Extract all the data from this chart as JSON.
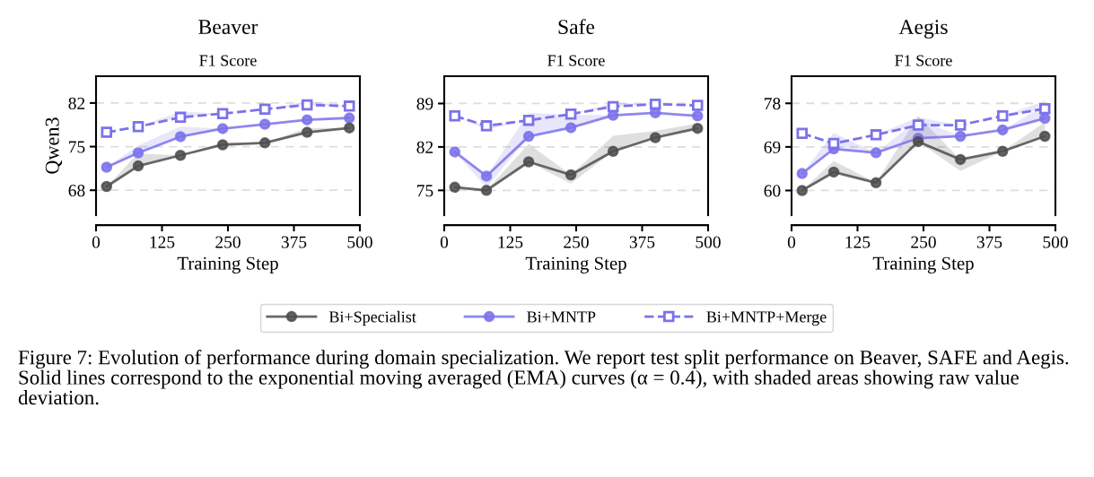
{
  "chart_data": [
    {
      "type": "line",
      "title": "Beaver",
      "subtitle": "F1 Score",
      "xlabel": "Training Step",
      "ylabel": "Qwen3",
      "x": [
        20,
        80,
        160,
        240,
        320,
        400,
        480
      ],
      "xlim": [
        0,
        500
      ],
      "xticks": [
        0,
        125,
        250,
        375,
        500
      ],
      "ylim": [
        64,
        86.3
      ],
      "yticks": [
        68,
        75,
        82
      ],
      "grid": "y",
      "legend": "bottom",
      "series": [
        {
          "name": "Bi+Specialist",
          "color": "#4d4d4d",
          "marker": "circle",
          "line_style": "solid",
          "values": [
            68.6,
            71.9,
            73.6,
            75.3,
            75.6,
            77.3,
            78.0
          ],
          "lower": [
            68.6,
            71.9,
            73.6,
            75.3,
            75.6,
            77.3,
            78.0
          ],
          "upper": [
            68.6,
            73.9,
            73.6,
            75.7,
            75.6,
            78.0,
            78.0
          ]
        },
        {
          "name": "Bi+MNTP",
          "color": "#7b72ea",
          "marker": "circle",
          "line_style": "solid",
          "values": [
            71.7,
            74.0,
            76.6,
            77.9,
            78.6,
            79.3,
            79.6
          ],
          "lower": [
            71.7,
            74.0,
            76.6,
            77.9,
            78.6,
            79.3,
            79.6
          ],
          "upper": [
            71.7,
            75.2,
            78.2,
            77.9,
            78.6,
            79.3,
            79.6
          ]
        },
        {
          "name": "Bi+MNTP+Merge",
          "color": "#7b72ea",
          "marker": "square",
          "line_style": "dashed",
          "values": [
            77.3,
            78.2,
            79.7,
            80.3,
            81.0,
            81.7,
            81.5
          ],
          "lower": [
            77.3,
            78.2,
            79.7,
            80.3,
            81.0,
            81.7,
            81.5
          ],
          "upper": [
            77.3,
            78.2,
            80.6,
            80.3,
            81.0,
            82.3,
            81.5
          ]
        }
      ],
      "annotations": [
        "Figure 7: Evolution of performance during domain specialization. We report test split performance on Beaver, SAFE and Aegis. Solid lines correspond to the exponential moving averaged (EMA) curves (α = 0.4), with shaded areas showing raw value deviation."
      ]
    },
    {
      "type": "line",
      "title": "Safe",
      "subtitle": "F1 Score",
      "xlabel": "Training Step",
      "x": [
        20,
        80,
        160,
        240,
        320,
        400,
        480
      ],
      "xlim": [
        0,
        500
      ],
      "xticks": [
        0,
        125,
        250,
        375,
        500
      ],
      "ylim": [
        71.0,
        93.4
      ],
      "yticks": [
        75,
        82,
        89
      ],
      "grid": "y",
      "series": [
        {
          "color": "#4d4d4d",
          "marker": "circle",
          "line_style": "solid",
          "values": [
            75.5,
            75.0,
            79.6,
            77.5,
            81.3,
            83.5,
            85.0
          ],
          "lower": [
            75.5,
            75.0,
            79.6,
            76.1,
            81.3,
            83.5,
            85.0
          ],
          "upper": [
            75.5,
            75.0,
            82.5,
            77.5,
            83.8,
            84.6,
            85.8
          ]
        },
        {
          "color": "#7b72ea",
          "marker": "circle",
          "line_style": "solid",
          "values": [
            81.2,
            77.3,
            83.7,
            85.1,
            87.1,
            87.5,
            87.0
          ],
          "lower": [
            81.2,
            75.4,
            83.7,
            85.1,
            87.1,
            87.5,
            87.0
          ],
          "upper": [
            81.2,
            77.3,
            87.5,
            87.2,
            87.1,
            87.5,
            87.0
          ]
        },
        {
          "color": "#7b72ea",
          "marker": "square",
          "line_style": "dashed",
          "values": [
            87.0,
            85.4,
            86.3,
            87.3,
            88.5,
            88.9,
            88.7
          ],
          "lower": [
            87.0,
            84.8,
            86.3,
            87.3,
            88.5,
            88.9,
            88.7
          ],
          "upper": [
            87.0,
            85.4,
            86.3,
            87.3,
            89.1,
            88.9,
            88.7
          ]
        }
      ]
    },
    {
      "type": "line",
      "title": "Aegis",
      "subtitle": "F1 Score",
      "xlabel": "Training Step",
      "x": [
        20,
        80,
        160,
        240,
        320,
        400,
        480
      ],
      "xlim": [
        0,
        500
      ],
      "xticks": [
        0,
        125,
        250,
        375,
        500
      ],
      "ylim": [
        54.9,
        83.6
      ],
      "yticks": [
        60,
        69,
        78
      ],
      "grid": "y",
      "series": [
        {
          "color": "#4d4d4d",
          "marker": "circle",
          "line_style": "solid",
          "values": [
            60.0,
            63.8,
            61.6,
            70.1,
            66.4,
            68.1,
            71.2
          ],
          "lower": [
            60.0,
            63.8,
            61.6,
            70.1,
            64.0,
            68.1,
            71.2
          ],
          "upper": [
            60.0,
            66.1,
            61.6,
            75.4,
            66.4,
            68.1,
            74.1
          ]
        },
        {
          "color": "#7b72ea",
          "marker": "circle",
          "line_style": "solid",
          "values": [
            63.5,
            68.6,
            67.8,
            70.8,
            71.2,
            72.5,
            74.9
          ],
          "lower": [
            63.5,
            68.6,
            67.8,
            70.8,
            71.2,
            72.5,
            74.9
          ],
          "upper": [
            63.5,
            71.9,
            67.8,
            74.6,
            71.2,
            72.5,
            77.6
          ]
        },
        {
          "color": "#7b72ea",
          "marker": "square",
          "line_style": "dashed",
          "values": [
            71.8,
            69.7,
            71.5,
            73.5,
            73.5,
            75.4,
            76.9
          ],
          "lower": [
            71.8,
            69.7,
            71.5,
            73.5,
            73.5,
            75.4,
            76.9
          ],
          "upper": [
            71.8,
            69.7,
            71.5,
            75.1,
            73.5,
            75.4,
            78.5
          ]
        }
      ]
    }
  ]
}
